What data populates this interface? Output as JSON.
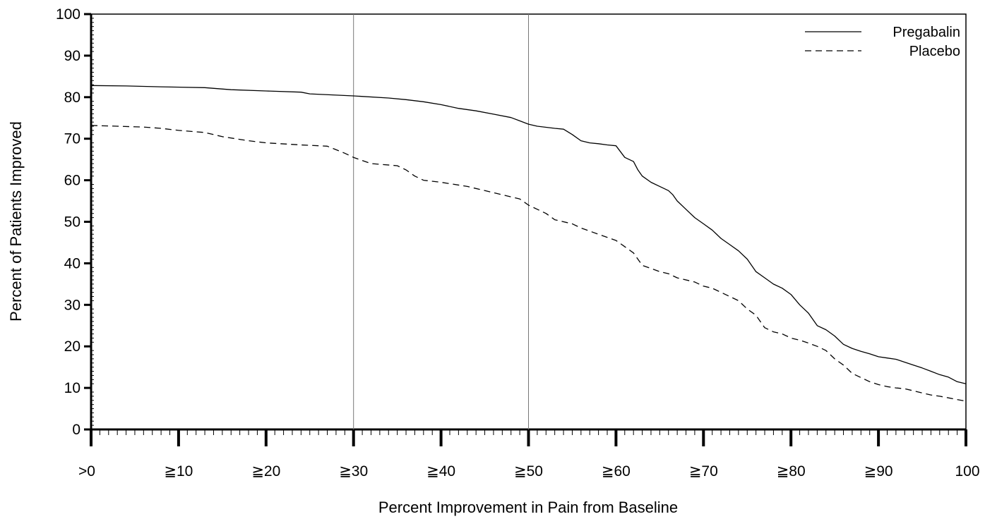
{
  "chart_data": {
    "type": "line",
    "title": "",
    "xlabel": "Percent Improvement in Pain from Baseline",
    "ylabel": "Percent of Patients Improved",
    "xlim": [
      0,
      100
    ],
    "ylim": [
      0,
      100
    ],
    "x_ticks": [
      {
        "value": 0,
        "label": ">0"
      },
      {
        "value": 10,
        "label": "≧10"
      },
      {
        "value": 20,
        "label": "≧20"
      },
      {
        "value": 30,
        "label": "≧30"
      },
      {
        "value": 40,
        "label": "≧40"
      },
      {
        "value": 50,
        "label": "≧50"
      },
      {
        "value": 60,
        "label": "≧60"
      },
      {
        "value": 70,
        "label": "≧70"
      },
      {
        "value": 80,
        "label": "≧80"
      },
      {
        "value": 90,
        "label": "≧90"
      },
      {
        "value": 100,
        "label": "100"
      }
    ],
    "y_ticks": [
      0,
      10,
      20,
      30,
      40,
      50,
      60,
      70,
      80,
      90,
      100
    ],
    "reference_lines_x": [
      30,
      50
    ],
    "grid": false,
    "legend_position": "top-right",
    "series": [
      {
        "name": "Pregabalin",
        "style": "solid",
        "color": "#000000",
        "x": [
          0,
          4,
          8,
          13,
          16,
          20,
          24,
          25,
          30,
          34,
          36,
          38,
          40,
          42,
          44,
          46,
          48,
          49,
          50,
          51,
          53,
          54,
          55,
          56,
          57,
          58,
          59,
          60,
          61,
          62,
          62.5,
          63,
          64,
          65,
          66,
          66.5,
          67,
          68,
          69,
          70,
          71,
          72,
          73,
          74,
          75,
          76,
          77,
          78,
          79,
          80,
          81,
          82,
          83,
          84,
          85,
          86,
          87,
          88,
          89,
          90,
          91,
          92,
          93,
          94,
          95,
          96,
          97,
          98,
          99,
          100
        ],
        "y": [
          82.8,
          82.7,
          82.5,
          82.3,
          81.8,
          81.5,
          81.2,
          80.8,
          80.3,
          79.8,
          79.4,
          78.9,
          78.2,
          77.3,
          76.7,
          75.9,
          75.1,
          74.3,
          73.5,
          73.0,
          72.5,
          72.3,
          71.0,
          69.5,
          69.0,
          68.8,
          68.5,
          68.3,
          65.5,
          64.5,
          62.5,
          61.0,
          59.5,
          58.5,
          57.5,
          56.5,
          55.0,
          53.0,
          51.0,
          49.5,
          48.0,
          46.0,
          44.5,
          43.0,
          41.0,
          38.0,
          36.5,
          35.0,
          34.0,
          32.5,
          30.0,
          28.0,
          25.0,
          24.0,
          22.5,
          20.5,
          19.5,
          18.8,
          18.2,
          17.5,
          17.2,
          16.9,
          16.2,
          15.5,
          14.8,
          14.0,
          13.2,
          12.6,
          11.5,
          11.0
        ]
      },
      {
        "name": "Placebo",
        "style": "dashed",
        "color": "#000000",
        "x": [
          0,
          3,
          6,
          8,
          10,
          13,
          15,
          18,
          20,
          24,
          27,
          29,
          30,
          32,
          35,
          36,
          37,
          38,
          40,
          43,
          45,
          47,
          48,
          49,
          50,
          51,
          52,
          53,
          55,
          56,
          58,
          60,
          61,
          62,
          63,
          65,
          66,
          67,
          69,
          70,
          71,
          72,
          73,
          74,
          75,
          76,
          77,
          78,
          79,
          80,
          81,
          82,
          83,
          84,
          85,
          86,
          87,
          88,
          89,
          90,
          91,
          92,
          93,
          94,
          95,
          96,
          97,
          98,
          99,
          100
        ],
        "y": [
          73.2,
          73.0,
          72.8,
          72.5,
          72.0,
          71.5,
          70.5,
          69.5,
          69.0,
          68.5,
          68.2,
          66.5,
          65.5,
          64.0,
          63.5,
          62.5,
          61.0,
          60.0,
          59.5,
          58.5,
          57.5,
          56.5,
          56.0,
          55.5,
          54.0,
          53.0,
          52.0,
          50.5,
          49.5,
          48.5,
          47.0,
          45.5,
          44.0,
          42.5,
          39.5,
          38.0,
          37.5,
          36.5,
          35.5,
          34.5,
          34.0,
          33.0,
          32.0,
          31.0,
          29.0,
          27.5,
          24.5,
          23.5,
          23.0,
          22.0,
          21.5,
          20.8,
          20.0,
          19.0,
          17.0,
          15.5,
          13.5,
          12.5,
          11.5,
          10.8,
          10.3,
          10.0,
          9.8,
          9.3,
          8.8,
          8.3,
          8.0,
          7.6,
          7.2,
          6.8
        ]
      }
    ]
  }
}
